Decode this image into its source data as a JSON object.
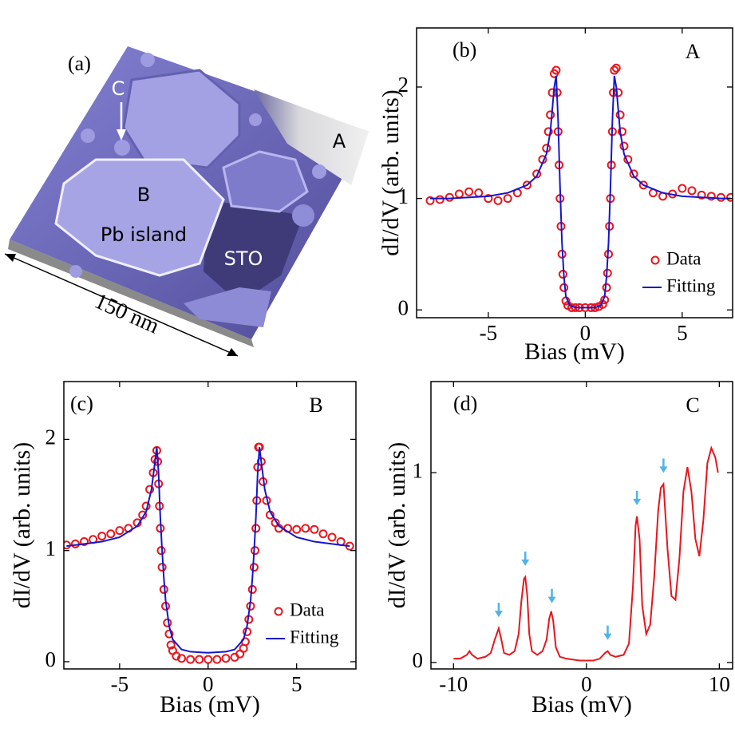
{
  "panel_a": {
    "label": "(a)",
    "tip_label": "C",
    "region_a": "A",
    "region_b": "B",
    "island_label": "Pb island",
    "substrate_label": "STO",
    "scale_bar": "150 nm"
  },
  "chart_data": [
    {
      "type": "line",
      "panel_label": "(b)",
      "annotation": "A",
      "xlabel": "Bias (mV)",
      "ylabel": "dI/dV (arb. units)",
      "xlim": [
        -8.7,
        7.6
      ],
      "ylim": [
        -0.07,
        2.53
      ],
      "xticks": [
        -5,
        0,
        5
      ],
      "yticks": [
        0,
        1,
        2
      ],
      "legend": "lower right",
      "series": [
        {
          "name": "Data",
          "style": "markers",
          "color": "#e8151c",
          "x": [
            -8,
            -7.5,
            -7,
            -6.5,
            -6,
            -5.5,
            -5,
            -4.5,
            -4,
            -3.5,
            -3,
            -2.5,
            -2.2,
            -2,
            -1.9,
            -1.8,
            -1.7,
            -1.6,
            -1.5,
            -1.45,
            -1.4,
            -1.35,
            -1.3,
            -1.25,
            -1.2,
            -1.15,
            -1.1,
            -1.0,
            -0.9,
            -0.7,
            -0.5,
            -0.3,
            0,
            0.3,
            0.5,
            0.7,
            0.9,
            1.0,
            1.1,
            1.15,
            1.2,
            1.25,
            1.3,
            1.35,
            1.4,
            1.45,
            1.5,
            1.6,
            1.7,
            1.8,
            1.9,
            2.0,
            2.2,
            2.5,
            3,
            3.5,
            4,
            4.5,
            5,
            5.5,
            6,
            6.5,
            7,
            7.5
          ],
          "values": [
            0.98,
            0.99,
            1.01,
            1.04,
            1.06,
            1.05,
            1.0,
            0.98,
            1.0,
            1.05,
            1.12,
            1.22,
            1.35,
            1.45,
            1.6,
            1.75,
            1.95,
            2.12,
            2.15,
            1.95,
            1.6,
            1.3,
            1.0,
            0.75,
            0.5,
            0.32,
            0.2,
            0.08,
            0.04,
            0.02,
            0.02,
            0.02,
            0.02,
            0.02,
            0.02,
            0.03,
            0.05,
            0.09,
            0.2,
            0.33,
            0.5,
            0.75,
            1.0,
            1.3,
            1.6,
            1.95,
            2.15,
            2.17,
            1.95,
            1.75,
            1.6,
            1.47,
            1.35,
            1.22,
            1.12,
            1.05,
            1.02,
            1.04,
            1.09,
            1.07,
            1.03,
            1.02,
            1.01,
            1.01
          ]
        },
        {
          "name": "Fitting",
          "style": "line",
          "color": "#1515d0",
          "x": [
            -8,
            -7,
            -6,
            -5,
            -4,
            -3,
            -2.5,
            -2,
            -1.8,
            -1.6,
            -1.5,
            -1.4,
            -1.3,
            -1.2,
            -1.1,
            -1.0,
            -0.8,
            -0.5,
            0,
            0.5,
            0.8,
            1.0,
            1.1,
            1.2,
            1.3,
            1.4,
            1.5,
            1.6,
            1.8,
            2,
            2.5,
            3,
            4,
            5,
            6,
            7,
            7.5
          ],
          "values": [
            1.0,
            1.0,
            1.01,
            1.02,
            1.05,
            1.12,
            1.2,
            1.4,
            1.6,
            2.0,
            2.1,
            1.7,
            1.1,
            0.6,
            0.3,
            0.12,
            0.04,
            0.02,
            0.02,
            0.02,
            0.04,
            0.12,
            0.3,
            0.6,
            1.1,
            1.7,
            2.1,
            2.0,
            1.6,
            1.4,
            1.2,
            1.12,
            1.05,
            1.02,
            1.01,
            1.0,
            1.0
          ]
        }
      ]
    },
    {
      "type": "line",
      "panel_label": "(c)",
      "annotation": "B",
      "xlabel": "Bias (mV)",
      "ylabel": "dI/dV (arb. units)",
      "xlim": [
        -8.15,
        8.35
      ],
      "ylim": [
        -0.065,
        2.52
      ],
      "xticks": [
        -5,
        0,
        5
      ],
      "yticks": [
        0,
        1,
        2
      ],
      "legend": "lower right",
      "series": [
        {
          "name": "Data",
          "style": "markers",
          "color": "#e8151c",
          "x": [
            -8,
            -7.5,
            -7,
            -6.5,
            -6,
            -5.5,
            -5,
            -4.5,
            -4,
            -3.7,
            -3.5,
            -3.3,
            -3.1,
            -3.0,
            -2.9,
            -2.85,
            -2.8,
            -2.75,
            -2.7,
            -2.65,
            -2.6,
            -2.5,
            -2.4,
            -2.3,
            -2.2,
            -2.1,
            -2,
            -1.8,
            -1.5,
            -1,
            -0.5,
            0,
            0.5,
            1,
            1.5,
            1.8,
            2,
            2.1,
            2.2,
            2.3,
            2.4,
            2.5,
            2.6,
            2.65,
            2.7,
            2.75,
            2.8,
            2.85,
            2.9,
            3.0,
            3.1,
            3.3,
            3.5,
            3.8,
            4,
            4.5,
            5,
            5.5,
            6,
            6.5,
            7,
            7.5,
            8
          ],
          "values": [
            1.05,
            1.06,
            1.08,
            1.1,
            1.13,
            1.15,
            1.18,
            1.2,
            1.25,
            1.32,
            1.4,
            1.55,
            1.7,
            1.82,
            1.9,
            1.8,
            1.6,
            1.4,
            1.2,
            1.0,
            0.85,
            0.65,
            0.5,
            0.35,
            0.25,
            0.15,
            0.1,
            0.05,
            0.03,
            0.02,
            0.02,
            0.02,
            0.02,
            0.03,
            0.04,
            0.07,
            0.12,
            0.18,
            0.27,
            0.38,
            0.5,
            0.65,
            0.85,
            1.0,
            1.2,
            1.45,
            1.75,
            1.93,
            1.93,
            1.8,
            1.62,
            1.45,
            1.32,
            1.25,
            1.2,
            1.2,
            1.19,
            1.2,
            1.19,
            1.15,
            1.12,
            1.08,
            1.04
          ]
        },
        {
          "name": "Fitting",
          "style": "line",
          "color": "#1515d0",
          "x": [
            -8,
            -7,
            -6,
            -5,
            -4,
            -3.5,
            -3.2,
            -3,
            -2.9,
            -2.8,
            -2.7,
            -2.6,
            -2.5,
            -2.4,
            -2.2,
            -2,
            -1.5,
            -1,
            0,
            1,
            1.5,
            2,
            2.2,
            2.4,
            2.5,
            2.6,
            2.7,
            2.8,
            2.9,
            3,
            3.2,
            3.5,
            4,
            5,
            6,
            7,
            8
          ],
          "values": [
            1.04,
            1.06,
            1.08,
            1.12,
            1.22,
            1.35,
            1.55,
            1.8,
            1.93,
            1.7,
            1.3,
            1.0,
            0.75,
            0.55,
            0.32,
            0.2,
            0.11,
            0.09,
            0.08,
            0.09,
            0.11,
            0.2,
            0.32,
            0.55,
            0.75,
            1.0,
            1.3,
            1.7,
            1.93,
            1.8,
            1.55,
            1.35,
            1.22,
            1.12,
            1.08,
            1.06,
            1.04
          ]
        }
      ]
    },
    {
      "type": "line",
      "panel_label": "(d)",
      "annotation": "C",
      "xlabel": "Bias (mV)",
      "ylabel": "dI/dV (arb. units)",
      "xlim": [
        -11.7,
        11.0
      ],
      "ylim": [
        -0.034,
        1.48
      ],
      "xticks": [
        -10,
        0,
        10
      ],
      "yticks": [
        0,
        1
      ],
      "arrows": {
        "x": [
          -6.6,
          -4.6,
          -2.6,
          1.6,
          3.8,
          5.8
        ],
        "color": "#4fb3e8"
      },
      "series": [
        {
          "style": "line",
          "color": "#e8151c",
          "x": [
            -10,
            -9.5,
            -9.0,
            -8.8,
            -8.6,
            -8.2,
            -7.6,
            -7.2,
            -6.9,
            -6.6,
            -6.4,
            -6.2,
            -5.8,
            -5.4,
            -5.1,
            -4.9,
            -4.7,
            -4.6,
            -4.45,
            -4.3,
            -4.1,
            -3.7,
            -3.3,
            -3.0,
            -2.8,
            -2.65,
            -2.5,
            -2.3,
            -2.0,
            -1.5,
            -0.5,
            0.5,
            1.0,
            1.4,
            1.6,
            1.8,
            2.2,
            2.8,
            3.2,
            3.5,
            3.7,
            3.8,
            4.0,
            4.2,
            4.5,
            4.8,
            5.1,
            5.4,
            5.6,
            5.8,
            6.1,
            6.4,
            6.7,
            7.0,
            7.3,
            7.6,
            7.9,
            8.2,
            8.5,
            8.8,
            9.1,
            9.4,
            9.7,
            9.9
          ],
          "values": [
            0.02,
            0.02,
            0.04,
            0.06,
            0.04,
            0.02,
            0.03,
            0.05,
            0.12,
            0.18,
            0.12,
            0.05,
            0.04,
            0.06,
            0.15,
            0.32,
            0.44,
            0.45,
            0.35,
            0.15,
            0.06,
            0.04,
            0.06,
            0.12,
            0.23,
            0.27,
            0.22,
            0.08,
            0.03,
            0.02,
            0.01,
            0.01,
            0.02,
            0.05,
            0.06,
            0.04,
            0.03,
            0.04,
            0.1,
            0.4,
            0.72,
            0.77,
            0.65,
            0.3,
            0.15,
            0.2,
            0.45,
            0.8,
            0.92,
            0.94,
            0.6,
            0.35,
            0.33,
            0.55,
            0.9,
            1.03,
            0.9,
            0.65,
            0.56,
            0.75,
            1.05,
            1.13,
            1.08,
            1.0
          ]
        }
      ]
    }
  ]
}
